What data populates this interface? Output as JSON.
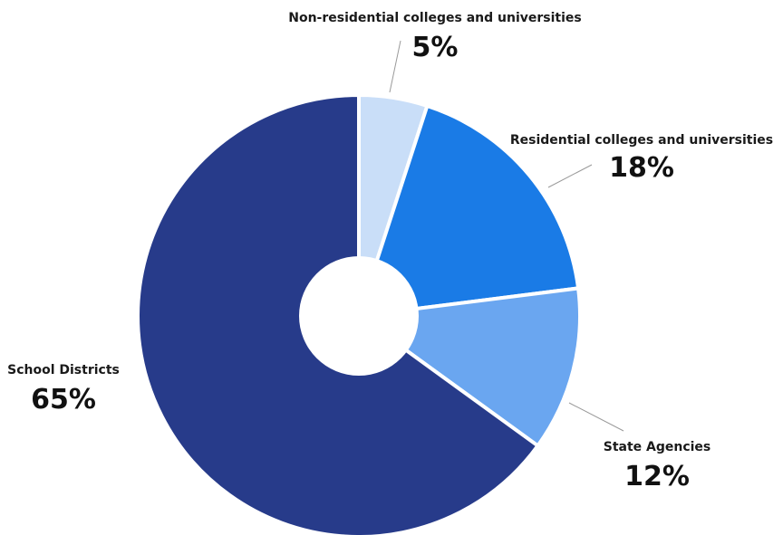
{
  "chart_data": {
    "type": "pie",
    "donut": true,
    "legend": "none",
    "categories": [
      "Non-residential colleges and universities",
      "Residential colleges and universities",
      "State Agencies",
      "School Districts"
    ],
    "values": [
      5,
      18,
      12,
      65
    ],
    "value_labels": [
      "5%",
      "18%",
      "12%",
      "65%"
    ],
    "colors": [
      "#c9def8",
      "#1a7be6",
      "#6aa6f0",
      "#273b8a"
    ]
  }
}
